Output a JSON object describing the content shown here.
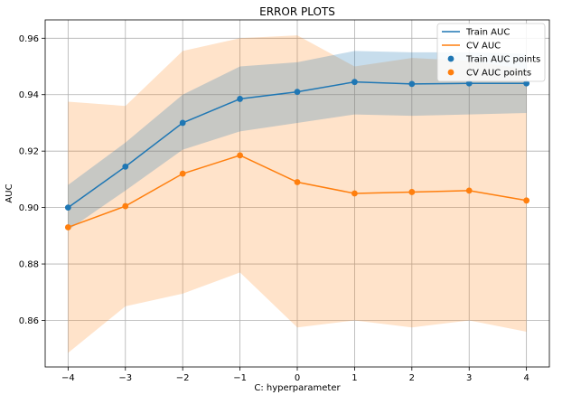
{
  "chart_data": {
    "type": "line",
    "title": "ERROR PLOTS",
    "xlabel": "C: hyperparameter",
    "ylabel": "AUC",
    "x": [
      -4,
      -3,
      -2,
      -1,
      0,
      1,
      2,
      3,
      4
    ],
    "xlim": [
      -4.4,
      4.4
    ],
    "ylim": [
      0.8435,
      0.9665
    ],
    "xticks": [
      -4,
      -3,
      -2,
      -1,
      0,
      1,
      2,
      3,
      4
    ],
    "xtick_labels": [
      "−4",
      "−3",
      "−2",
      "−1",
      "0",
      "1",
      "2",
      "3",
      "4"
    ],
    "yticks": [
      0.86,
      0.88,
      0.9,
      0.92,
      0.94,
      0.96
    ],
    "ytick_labels": [
      "0.86",
      "0.88",
      "0.90",
      "0.92",
      "0.94",
      "0.96"
    ],
    "grid": true,
    "legend_position": "top-right",
    "series": [
      {
        "name": "Train AUC",
        "points_name": "Train AUC points",
        "color": "#1f77b4",
        "values": [
          0.9,
          0.9145,
          0.93,
          0.9385,
          0.941,
          0.9445,
          0.9438,
          0.944,
          0.944
        ],
        "band_upper": [
          0.908,
          0.923,
          0.94,
          0.95,
          0.9515,
          0.9555,
          0.955,
          0.955,
          0.9545
        ],
        "band_lower": [
          0.892,
          0.906,
          0.9205,
          0.927,
          0.93,
          0.933,
          0.9325,
          0.933,
          0.9335
        ]
      },
      {
        "name": "CV AUC",
        "points_name": "CV AUC points",
        "color": "#ff7f0e",
        "values": [
          0.893,
          0.9005,
          0.912,
          0.9185,
          0.909,
          0.905,
          0.9055,
          0.906,
          0.9025
        ],
        "band_upper": [
          0.9375,
          0.936,
          0.9555,
          0.96,
          0.961,
          0.95,
          0.953,
          0.952,
          0.949
        ],
        "band_lower": [
          0.8485,
          0.865,
          0.8695,
          0.877,
          0.8575,
          0.86,
          0.8575,
          0.86,
          0.856
        ]
      }
    ]
  }
}
